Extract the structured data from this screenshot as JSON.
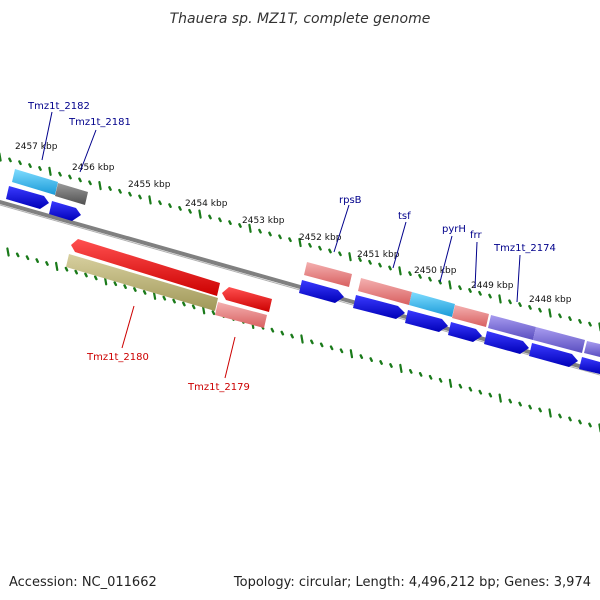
{
  "title": "Thauera sp. MZ1T, complete genome",
  "footer": {
    "accession": "Accession: NC_011662",
    "summary": "Topology: circular; Length: 4,496,212 bp; Genes: 3,974"
  },
  "colors": {
    "backbone": "#808080",
    "tick_dots": "#1a7a1a",
    "label_forward": "#00008b",
    "label_reverse": "#cc0000",
    "cds": "#0000ee",
    "gene_gray": "#707070",
    "gene_cyan": "#2ab0e8",
    "gene_pink": "#e88080",
    "gene_red": "#ee0000",
    "gene_olive": "#b8b070",
    "gene_purple": "#7b6fd6"
  },
  "kbp_ticks": [
    "2457 kbp",
    "2456 kbp",
    "2455 kbp",
    "2454 kbp",
    "2453 kbp",
    "2452 kbp",
    "2451 kbp",
    "2450 kbp",
    "2449 kbp",
    "2448 kbp"
  ],
  "forward_labels": [
    "Tmz1t_2182",
    "Tmz1t_2181",
    "rpsB",
    "tsf",
    "pyrH",
    "frr",
    "Tmz1t_2174"
  ],
  "reverse_labels": [
    "Tmz1t_2180",
    "Tmz1t_2179"
  ]
}
